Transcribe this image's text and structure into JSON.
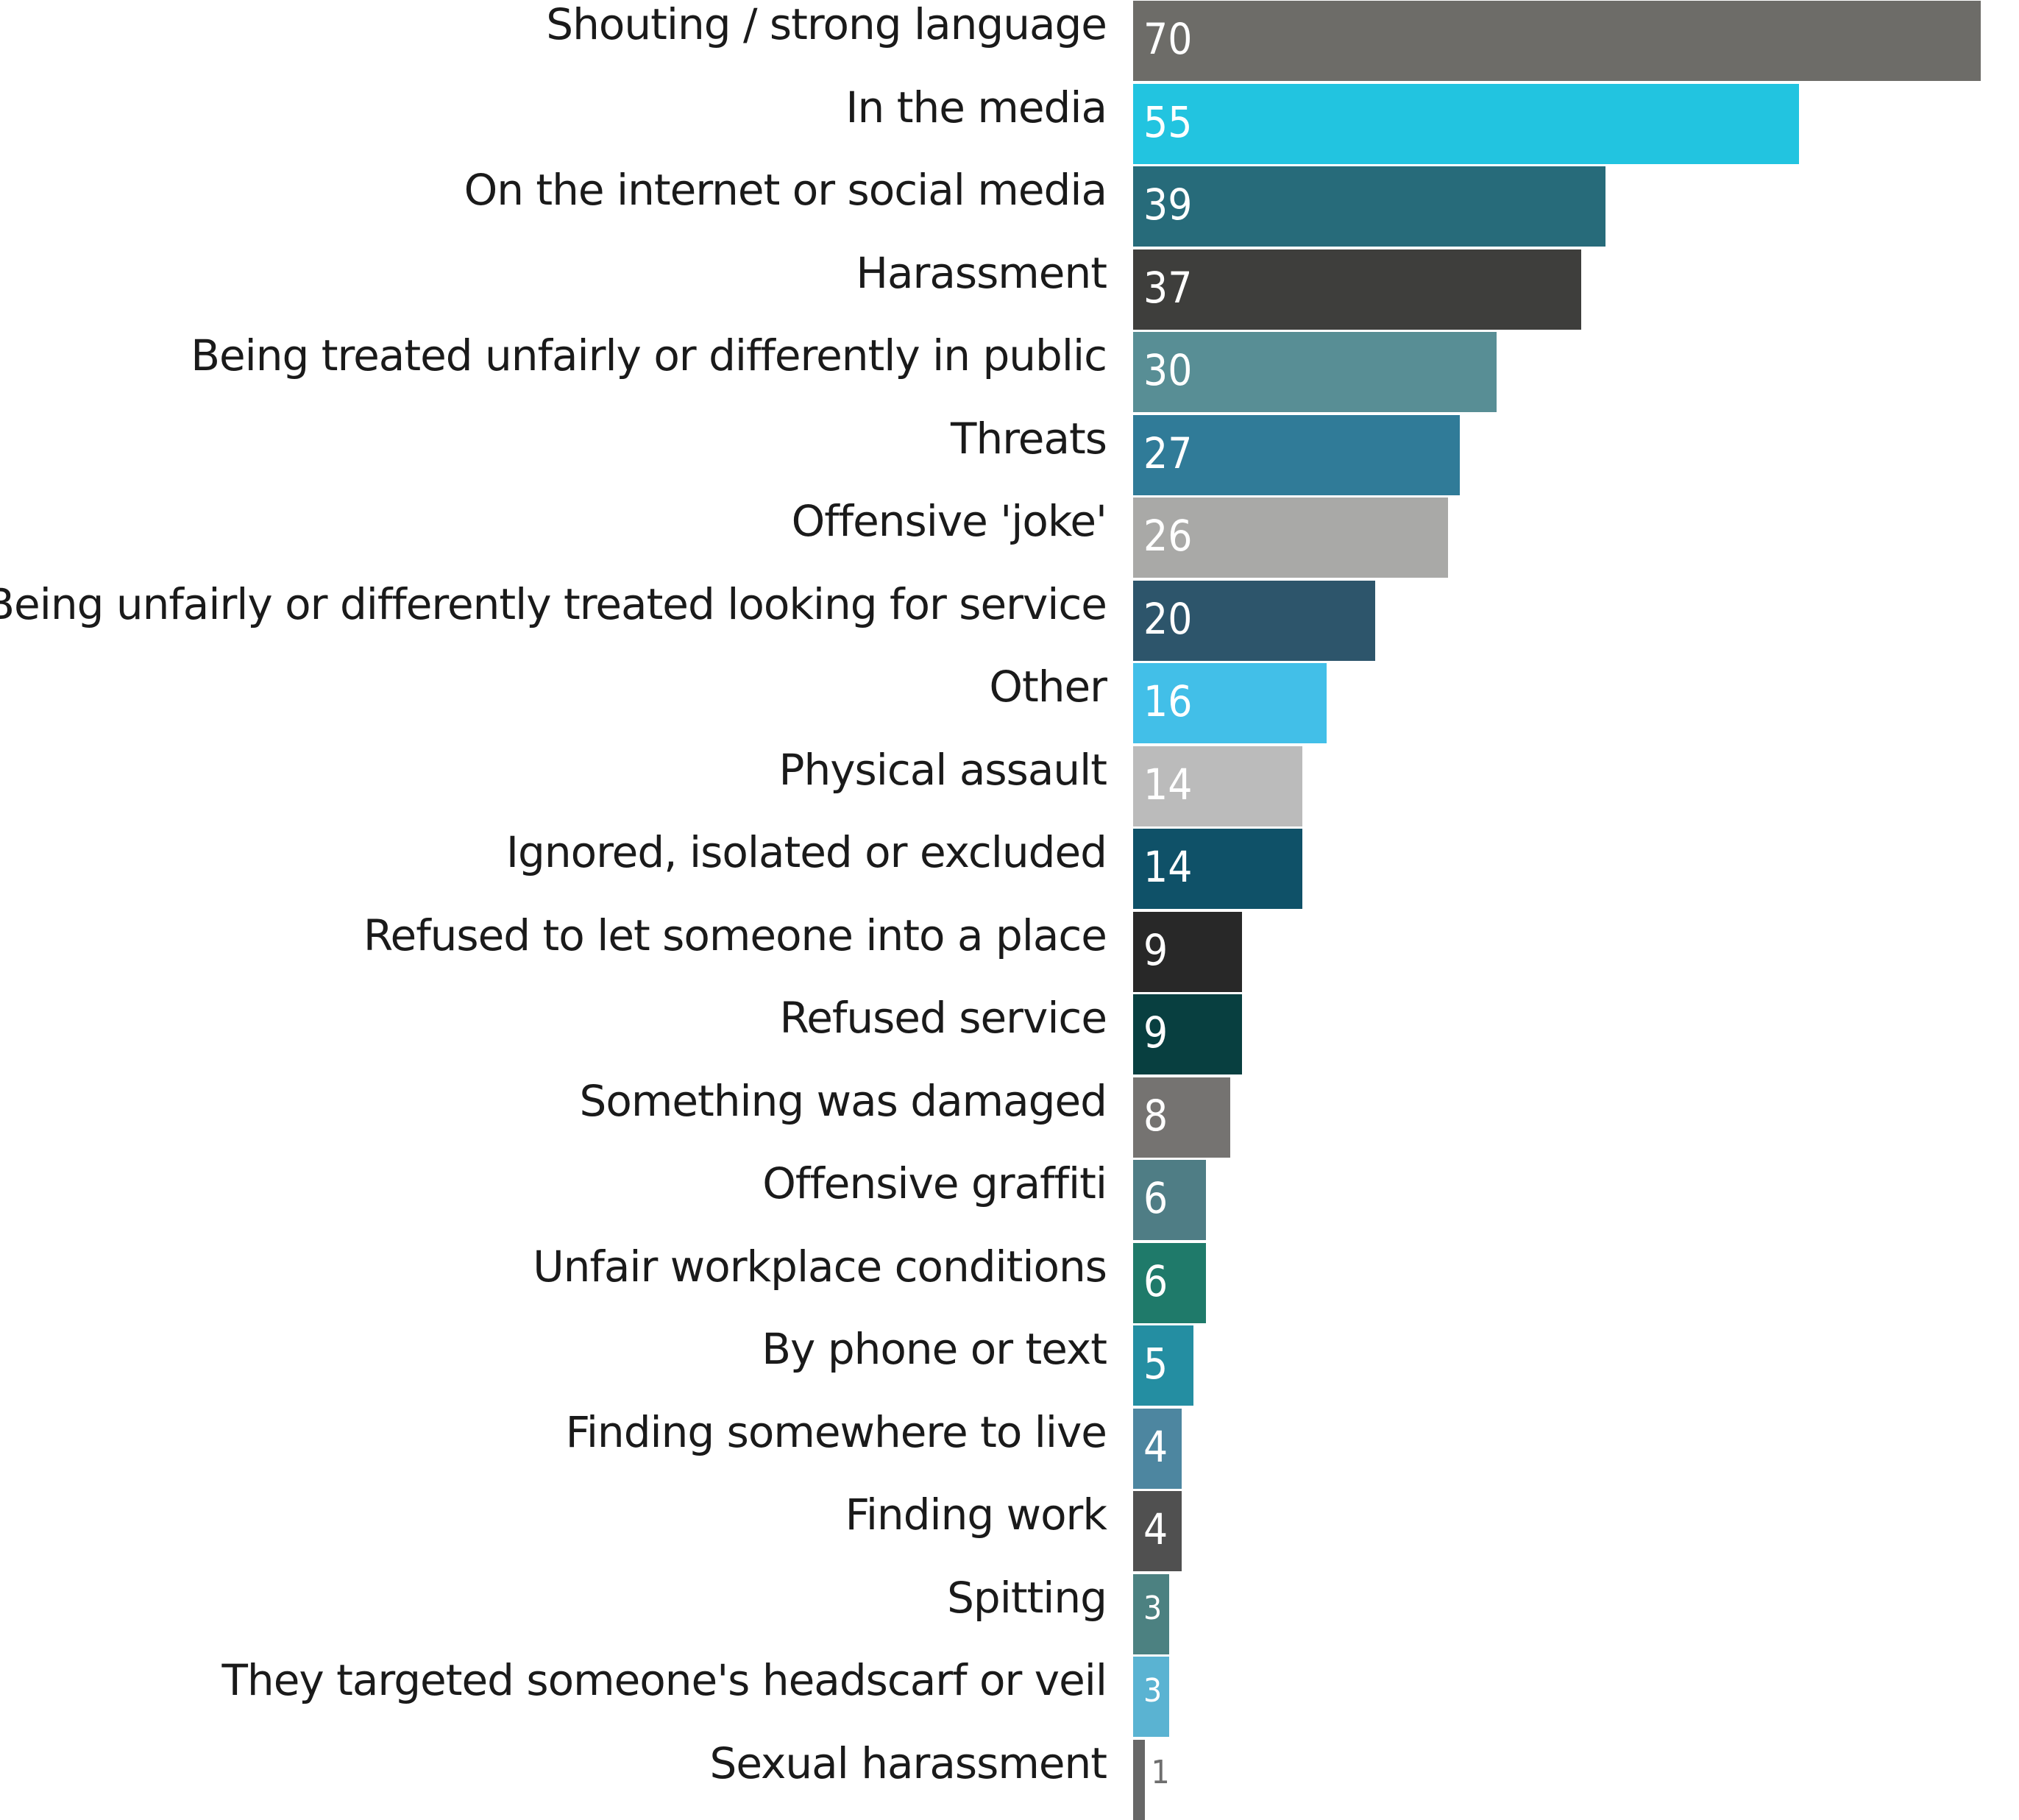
{
  "chart_data": {
    "type": "bar",
    "orientation": "horizontal",
    "title": "",
    "xlabel": "",
    "ylabel": "",
    "xlim": [
      0,
      70
    ],
    "grid": false,
    "legend": "none",
    "categories": [
      "Shouting / strong language",
      "In the media",
      "On the internet or social media",
      "Harassment",
      "Being treated unfairly or differently in public",
      "Threats",
      "Offensive 'joke'",
      "Being unfairly or differently treated  looking for  service",
      "Other",
      "Physical assault",
      "Ignored, isolated or excluded",
      "Refused to let someone into a place",
      "Refused service",
      "Something was damaged",
      "Offensive graffiti",
      "Unfair workplace conditions",
      "By phone or text",
      "Finding somewhere to live",
      "Finding work",
      "Spitting",
      "They targeted someone's headscarf or veil",
      "Sexual harassment"
    ],
    "values": [
      70,
      55,
      39,
      37,
      30,
      27,
      26,
      20,
      16,
      14,
      14,
      9,
      9,
      8,
      6,
      6,
      5,
      4,
      4,
      3,
      3,
      1
    ],
    "value_labels": [
      "70",
      "55",
      "39",
      "37",
      "30",
      "27",
      "26",
      "20",
      "16",
      "14",
      "14",
      "9",
      "9",
      "8",
      "6",
      "6",
      "5",
      "4",
      "4",
      "3",
      "3",
      "1"
    ],
    "colors": [
      "#6d6c68",
      "#22c4e0",
      "#276b7a",
      "#3e3e3c",
      "#588e95",
      "#307b98",
      "#a9a9a7",
      "#2d556b",
      "#42bfe8",
      "#bbbbbb",
      "#0f5168",
      "#282828",
      "#083f40",
      "#757371",
      "#4f7d85",
      "#1f7a6a",
      "#248ea2",
      "#4d86a0",
      "#505050",
      "#4c8181",
      "#5ab3d2",
      "#676767"
    ]
  }
}
